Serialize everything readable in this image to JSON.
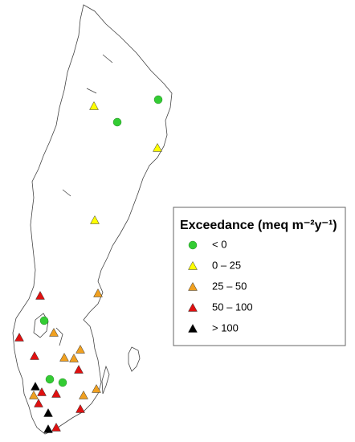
{
  "legend": {
    "title": "Exceedance (meq m⁻²y⁻¹)",
    "items": [
      {
        "label": "< 0",
        "shape": "circle",
        "color": "#33cc33"
      },
      {
        "label": "0 – 25",
        "shape": "triangle",
        "color": "#ffff00"
      },
      {
        "label": "25 – 50",
        "shape": "triangle",
        "color": "#f0a020"
      },
      {
        "label": "50 – 100",
        "shape": "triangle",
        "color": "#e01010"
      },
      {
        "label": "> 100",
        "shape": "triangle",
        "color": "#000000"
      }
    ]
  }
}
